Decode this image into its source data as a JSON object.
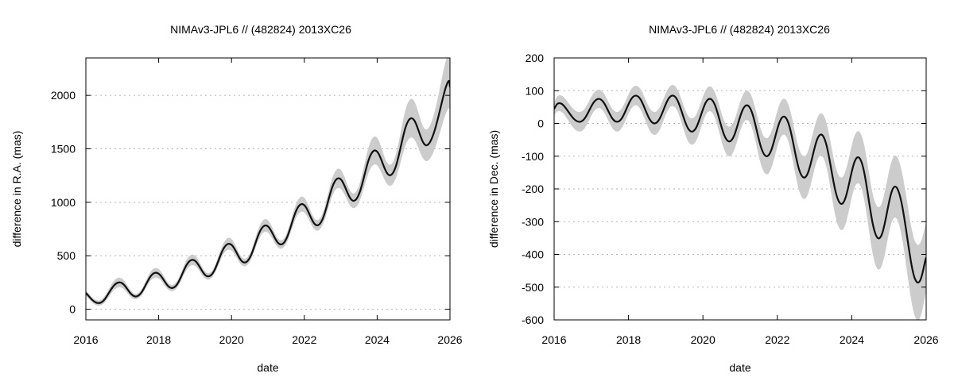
{
  "chart_data": [
    {
      "type": "line",
      "title": "NIMAv3-JPL6 // (482824) 2013XC26",
      "xlabel": "date",
      "ylabel": "difference in R.A. (mas)",
      "xlim": [
        2016,
        2026
      ],
      "ylim": [
        -100,
        2350
      ],
      "xticks": [
        2016,
        2018,
        2020,
        2022,
        2024,
        2026
      ],
      "yticks": [
        0,
        500,
        1000,
        1500,
        2000
      ],
      "grid": "horizontal dotted",
      "band_color": "#cccccc",
      "line_color": "#111111",
      "series": [
        {
          "x": [
            2016.0,
            2016.4,
            2016.9,
            2017.4,
            2017.9,
            2018.4,
            2018.9,
            2019.4,
            2019.9,
            2020.4,
            2020.9,
            2021.4,
            2021.9,
            2022.4,
            2022.9,
            2023.4,
            2023.9,
            2024.4,
            2024.9,
            2025.4,
            2025.9,
            2026.0
          ],
          "y": [
            150,
            60,
            250,
            120,
            340,
            200,
            460,
            310,
            610,
            440,
            780,
            610,
            980,
            790,
            1220,
            1020,
            1480,
            1260,
            1780,
            1540,
            2090,
            2080
          ],
          "band_halfwidth": [
            25,
            25,
            45,
            25,
            45,
            30,
            50,
            30,
            55,
            35,
            60,
            40,
            70,
            50,
            90,
            70,
            130,
            100,
            180,
            150,
            250,
            240
          ]
        }
      ]
    },
    {
      "type": "line",
      "title": "NIMAv3-JPL6 // (482824) 2013XC26",
      "xlabel": "date",
      "ylabel": "difference in Dec. (mas)",
      "xlim": [
        2016,
        2026
      ],
      "ylim": [
        -600,
        200
      ],
      "xticks": [
        2016,
        2018,
        2020,
        2022,
        2024,
        2026
      ],
      "yticks": [
        -600,
        -500,
        -400,
        -300,
        -200,
        -100,
        0,
        100,
        200
      ],
      "grid": "horizontal dotted",
      "band_color": "#cccccc",
      "line_color": "#111111",
      "series": [
        {
          "x": [
            2016.0,
            2016.2,
            2016.7,
            2017.2,
            2017.7,
            2018.2,
            2018.7,
            2019.2,
            2019.7,
            2020.2,
            2020.7,
            2021.2,
            2021.7,
            2022.2,
            2022.7,
            2023.2,
            2023.7,
            2024.2,
            2024.7,
            2025.2,
            2025.7,
            2026.0
          ],
          "y": [
            45,
            60,
            5,
            75,
            5,
            85,
            0,
            85,
            -25,
            75,
            -55,
            55,
            -100,
            20,
            -165,
            -35,
            -245,
            -105,
            -350,
            -195,
            -475,
            -410
          ],
          "band_halfwidth": [
            20,
            25,
            30,
            28,
            30,
            30,
            35,
            32,
            40,
            38,
            45,
            45,
            55,
            55,
            65,
            65,
            80,
            80,
            95,
            95,
            115,
            105
          ]
        }
      ]
    }
  ]
}
